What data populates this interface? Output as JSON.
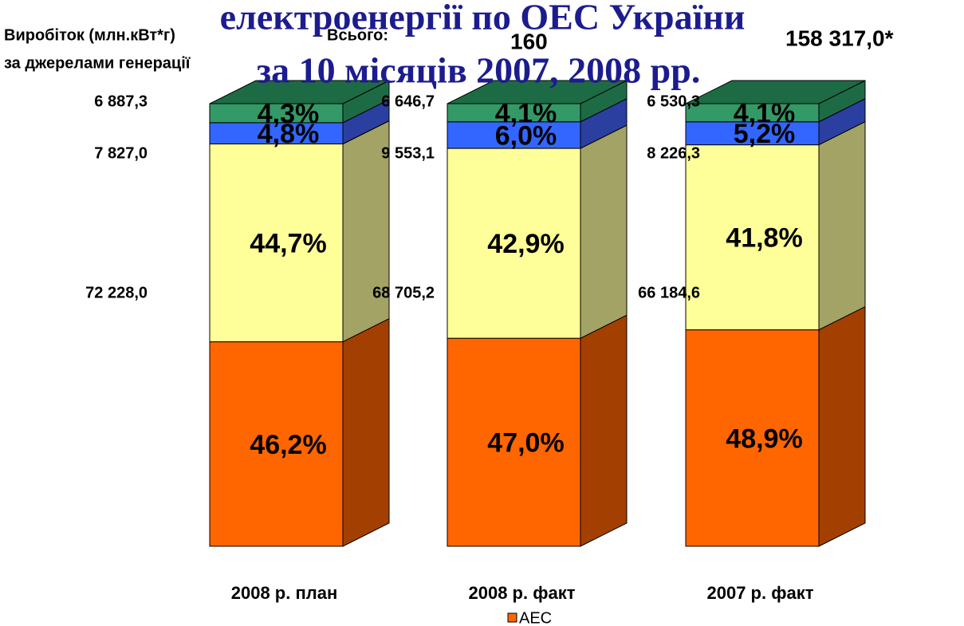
{
  "chart_data": {
    "type": "bar3d_stacked",
    "title": [
      "електроенергії по ОЕС України",
      "за 10 місяців 2007, 2008 рр."
    ],
    "headline": [
      "Виробіток (млн.кВт*г)",
      "за джерелами генерації",
      "Всього:",
      "160",
      "158 317,0*"
    ],
    "categories": [
      "2008 р. план",
      "2008 р. факт",
      "2007 р. факт"
    ],
    "series": [
      {
        "name": "АЕС",
        "color": "#ff6600",
        "side": "#a33f00",
        "values": [
          46.2,
          47.0,
          48.9
        ],
        "value_labels": [
          "46,2%",
          "47,0%",
          "48,9%"
        ]
      },
      {
        "color": "#ffff99",
        "side": "#a3a365",
        "values": [
          44.7,
          42.9,
          41.8
        ],
        "value_labels": [
          "44,7%",
          "42,9%",
          "41,8%"
        ]
      },
      {
        "color": "#3366ff",
        "side": "#2a3fa0",
        "values": [
          4.8,
          6.0,
          5.2
        ],
        "value_labels": [
          "4,8%",
          "6,0%",
          "5,2%"
        ]
      },
      {
        "color": "#339966",
        "side": "#1d6b45",
        "values": [
          4.3,
          4.1,
          4.1
        ],
        "value_labels": [
          "4,3%",
          "4,1%",
          "4,1%"
        ]
      }
    ],
    "generation_labels": [
      [
        "6 887,3",
        "7 827,0",
        "72 228,0"
      ],
      [
        "6 646,7",
        "9 553,1",
        "68 705,2"
      ],
      [
        "6 530,3",
        "8 226,3",
        "66 184,6"
      ]
    ],
    "ylim": [
      0,
      100
    ],
    "legend": "bottom"
  }
}
